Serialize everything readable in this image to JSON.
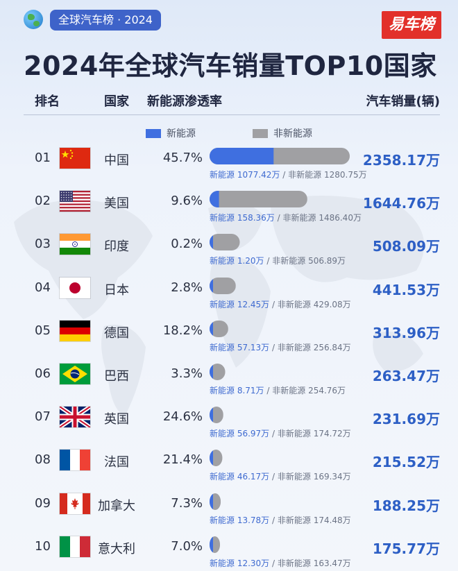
{
  "header": {
    "tag": "全球汽车榜 · 2024",
    "logo": "易车榜",
    "title": "2024年全球汽车销量TOP10国家"
  },
  "columns": {
    "rank": "排名",
    "country": "国家",
    "penetration": "新能源渗透率",
    "sales": "汽车销量(辆)"
  },
  "legend": {
    "nev": "新能源",
    "ice": "非新能源"
  },
  "colors": {
    "nev": "#3f6fe0",
    "ice": "#a0a0a3",
    "accent": "#2d5fc5"
  },
  "chart_data": {
    "type": "bar",
    "unit": "万",
    "categories": [
      "中国",
      "美国",
      "印度",
      "日本",
      "德国",
      "巴西",
      "英国",
      "法国",
      "加拿大",
      "意大利"
    ],
    "series": [
      {
        "name": "新能源",
        "values": [
          1077.42,
          158.36,
          1.2,
          12.45,
          57.13,
          8.71,
          56.97,
          46.17,
          13.78,
          12.3
        ]
      },
      {
        "name": "非新能源",
        "values": [
          1280.75,
          1486.4,
          506.89,
          429.08,
          256.84,
          254.76,
          174.72,
          169.34,
          174.48,
          163.47
        ]
      }
    ]
  },
  "rows": [
    {
      "rank": "01",
      "flag": "china-flag",
      "country": "中国",
      "pct": "45.7%",
      "sales": "2358.17万",
      "nev_label": "新能源 1077.42万",
      "sep": "/",
      "ice_label": "非新能源 1280.75万"
    },
    {
      "rank": "02",
      "flag": "usa-flag",
      "country": "美国",
      "pct": "9.6%",
      "sales": "1644.76万",
      "nev_label": "新能源 158.36万",
      "sep": "/",
      "ice_label": "非新能源 1486.40万"
    },
    {
      "rank": "03",
      "flag": "india-flag",
      "country": "印度",
      "pct": "0.2%",
      "sales": "508.09万",
      "nev_label": "新能源 1.20万",
      "sep": "/",
      "ice_label": "非新能源 506.89万"
    },
    {
      "rank": "04",
      "flag": "japan-flag",
      "country": "日本",
      "pct": "2.8%",
      "sales": "441.53万",
      "nev_label": "新能源 12.45万",
      "sep": "/",
      "ice_label": "非新能源 429.08万"
    },
    {
      "rank": "05",
      "flag": "germany-flag",
      "country": "德国",
      "pct": "18.2%",
      "sales": "313.96万",
      "nev_label": "新能源 57.13万",
      "sep": "/",
      "ice_label": "非新能源 256.84万"
    },
    {
      "rank": "06",
      "flag": "brazil-flag",
      "country": "巴西",
      "pct": "3.3%",
      "sales": "263.47万",
      "nev_label": "新能源 8.71万",
      "sep": "/",
      "ice_label": "非新能源 254.76万"
    },
    {
      "rank": "07",
      "flag": "uk-flag",
      "country": "英国",
      "pct": "24.6%",
      "sales": "231.69万",
      "nev_label": "新能源 56.97万",
      "sep": "/",
      "ice_label": "非新能源 174.72万"
    },
    {
      "rank": "08",
      "flag": "france-flag",
      "country": "法国",
      "pct": "21.4%",
      "sales": "215.52万",
      "nev_label": "新能源 46.17万",
      "sep": "/",
      "ice_label": "非新能源 169.34万"
    },
    {
      "rank": "09",
      "flag": "canada-flag",
      "country": "加拿大",
      "pct": "7.3%",
      "sales": "188.25万",
      "nev_label": "新能源 13.78万",
      "sep": "/",
      "ice_label": "非新能源 174.48万"
    },
    {
      "rank": "10",
      "flag": "italy-flag",
      "country": "意大利",
      "pct": "7.0%",
      "sales": "175.77万",
      "nev_label": "新能源 12.30万",
      "sep": "/",
      "ice_label": "非新能源 163.47万"
    }
  ]
}
